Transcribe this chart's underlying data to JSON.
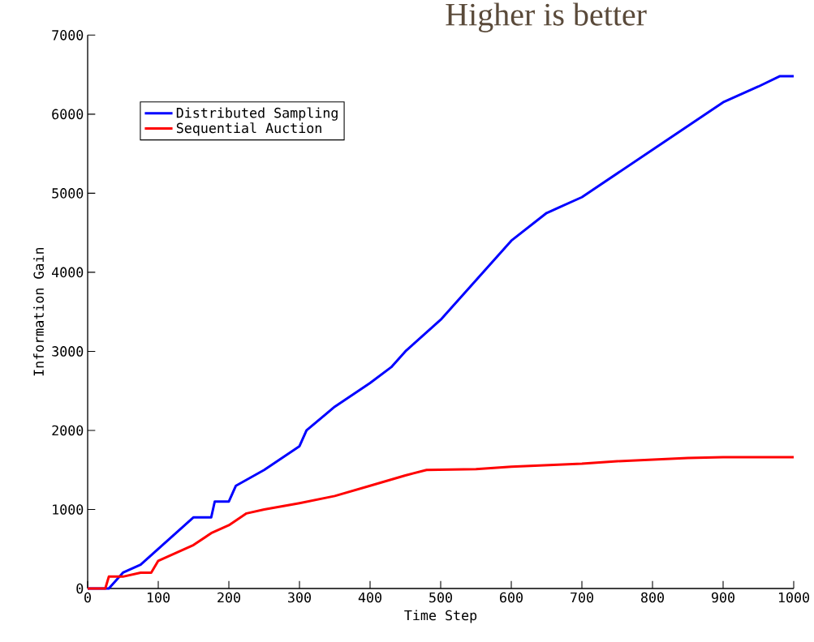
{
  "chart_data": {
    "type": "line",
    "title": "Higher is better",
    "xlabel": "Time Step",
    "ylabel": "Information Gain",
    "xlim": [
      0,
      1000
    ],
    "ylim": [
      0,
      7000
    ],
    "xticks": [
      0,
      100,
      200,
      300,
      400,
      500,
      600,
      700,
      800,
      900,
      1000
    ],
    "yticks": [
      0,
      1000,
      2000,
      3000,
      4000,
      5000,
      6000,
      7000
    ],
    "legend": "top left",
    "grid": false,
    "series": [
      {
        "name": "Distributed Sampling",
        "color": "#0000ff",
        "x": [
          0,
          25,
          30,
          50,
          75,
          100,
          125,
          150,
          175,
          180,
          200,
          210,
          250,
          300,
          310,
          350,
          400,
          430,
          450,
          500,
          550,
          600,
          650,
          700,
          750,
          800,
          850,
          900,
          950,
          980,
          1000
        ],
        "values": [
          0,
          0,
          0,
          200,
          300,
          500,
          700,
          900,
          900,
          1100,
          1100,
          1300,
          1500,
          1800,
          2000,
          2300,
          2600,
          2800,
          3000,
          3400,
          3900,
          4400,
          4750,
          4950,
          5250,
          5550,
          5850,
          6150,
          6350,
          6480,
          6480
        ]
      },
      {
        "name": "Sequential Auction",
        "color": "#ff0000",
        "x": [
          0,
          25,
          30,
          50,
          75,
          90,
          100,
          125,
          150,
          175,
          200,
          225,
          250,
          300,
          350,
          400,
          450,
          480,
          550,
          600,
          650,
          700,
          750,
          800,
          850,
          900,
          1000
        ],
        "values": [
          0,
          0,
          150,
          150,
          200,
          200,
          350,
          450,
          550,
          700,
          800,
          950,
          1000,
          1080,
          1170,
          1300,
          1430,
          1500,
          1510,
          1540,
          1560,
          1580,
          1610,
          1630,
          1650,
          1660,
          1660
        ]
      }
    ]
  }
}
